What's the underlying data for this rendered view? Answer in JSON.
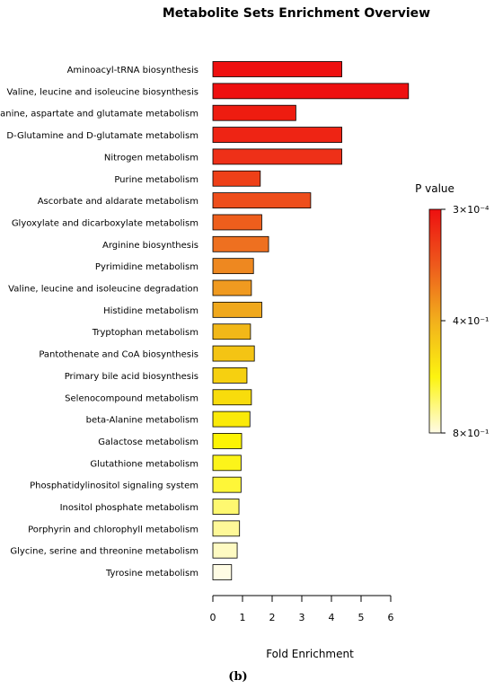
{
  "chart_data": {
    "type": "bar",
    "orientation": "horizontal",
    "title": "Metabolite Sets Enrichment Overview",
    "xlabel": "Fold Enrichment",
    "ylabel": "",
    "xlim": [
      0,
      6.6
    ],
    "xticks": [
      0,
      1,
      2,
      3,
      4,
      5,
      6
    ],
    "grid": false,
    "categories": [
      "Aminoacyl-tRNA biosynthesis",
      "Valine, leucine and isoleucine biosynthesis",
      "Alanine, aspartate and glutamate metabolism",
      "D-Glutamine and D-glutamate metabolism",
      "Nitrogen metabolism",
      "Purine metabolism",
      "Ascorbate and aldarate metabolism",
      "Glyoxylate and dicarboxylate metabolism",
      "Arginine biosynthesis",
      "Pyrimidine metabolism",
      "Valine, leucine and isoleucine degradation",
      "Histidine metabolism",
      "Tryptophan metabolism",
      "Pantothenate and CoA biosynthesis",
      "Primary bile acid biosynthesis",
      "Selenocompound metabolism",
      "beta-Alanine metabolism",
      "Galactose metabolism",
      "Glutathione metabolism",
      "Phosphatidylinositol signaling system",
      "Inositol phosphate metabolism",
      "Porphyrin and chlorophyll metabolism",
      "Glycine, serine and threonine metabolism",
      "Tyrosine metabolism"
    ],
    "values": [
      4.35,
      6.6,
      2.8,
      4.35,
      4.35,
      1.6,
      3.3,
      1.65,
      1.88,
      1.37,
      1.3,
      1.65,
      1.27,
      1.4,
      1.15,
      1.3,
      1.25,
      0.97,
      0.95,
      0.95,
      0.88,
      0.9,
      0.82,
      0.63
    ],
    "colors": [
      "#ee1010",
      "#ee1010",
      "#ee1c10",
      "#ee2414",
      "#ee3018",
      "#ee4018",
      "#ee4e1c",
      "#ee5e1c",
      "#ee7020",
      "#ee8820",
      "#f09a20",
      "#f0a81c",
      "#f2b818",
      "#f4c414",
      "#f6d010",
      "#f8dc0c",
      "#faea08",
      "#fcf404",
      "#fcf41a",
      "#fef638",
      "#fef870",
      "#fef898",
      "#fefac2",
      "#fffce4"
    ],
    "legend": {
      "title": "P value",
      "placement": "right",
      "ticks": [
        "3×10⁻⁴",
        "4×10⁻¹",
        "8×10⁻¹"
      ]
    }
  },
  "caption": "(b)"
}
